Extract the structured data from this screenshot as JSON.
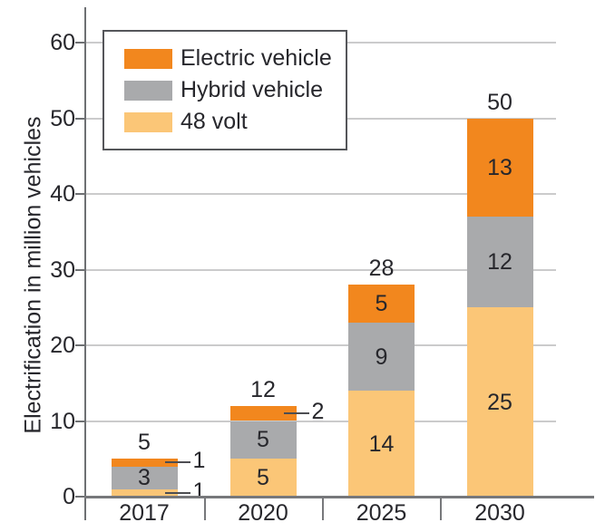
{
  "chart_data": {
    "type": "bar",
    "stacked": true,
    "title": "",
    "ylabel": "Electrification in million vehicles",
    "xlabel": "",
    "ylim": [
      0,
      60
    ],
    "yticks": [
      0,
      10,
      20,
      30,
      40,
      50,
      60
    ],
    "grid": true,
    "legend_position": "top-left",
    "categories": [
      "2017",
      "2020",
      "2025",
      "2030"
    ],
    "series": [
      {
        "name": "48 volt",
        "color": "#FBC677",
        "values": [
          1,
          5,
          14,
          25
        ],
        "label_modes": [
          "callout",
          "inside",
          "inside",
          "inside"
        ]
      },
      {
        "name": "Hybrid vehicle",
        "color": "#A9AAAC",
        "values": [
          3,
          5,
          9,
          12
        ],
        "label_modes": [
          "inside",
          "inside",
          "inside",
          "inside"
        ]
      },
      {
        "name": "Electric vehicle",
        "color": "#F2871E",
        "values": [
          1,
          2,
          5,
          13
        ],
        "label_modes": [
          "callout",
          "callout",
          "inside",
          "inside"
        ]
      }
    ],
    "totals": [
      5,
      12,
      28,
      50
    ],
    "legend_items": [
      "Electric vehicle",
      "Hybrid vehicle",
      "48 volt"
    ],
    "colors": {
      "electric_vehicle": "#F2871E",
      "hybrid_vehicle": "#A9AAAC",
      "volt_48": "#FBC677",
      "text": "#27272C",
      "axis": "#77787B",
      "gridline": "#CBCBCC",
      "legend_border": "#55565A",
      "background": "#FFFFFF"
    }
  }
}
